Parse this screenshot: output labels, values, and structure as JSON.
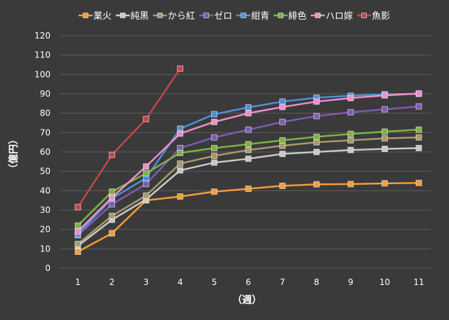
{
  "chart_data": {
    "type": "line",
    "xlabel": "（週）",
    "ylabel": "（億円）",
    "categories": [
      "1",
      "2",
      "3",
      "4",
      "5",
      "6",
      "7",
      "8",
      "9",
      "10",
      "11"
    ],
    "ylim": [
      0,
      120
    ],
    "yticks": [
      "0",
      "10",
      "20",
      "30",
      "40",
      "50",
      "60",
      "70",
      "80",
      "90",
      "100",
      "110",
      "120"
    ],
    "grid": true,
    "legend_position": "top",
    "series": [
      {
        "name": "業火",
        "color": "#f39c3d",
        "values": [
          8.5,
          18,
          35,
          37,
          39.5,
          41,
          42.5,
          43.3,
          43.4,
          43.8,
          44
        ]
      },
      {
        "name": "純黒",
        "color": "#c8c8c8",
        "values": [
          11.5,
          25,
          35.5,
          50.5,
          54.5,
          56.5,
          59,
          60,
          61,
          61.6,
          62
        ]
      },
      {
        "name": "から紅",
        "color": "#a89a6a",
        "values": [
          12.5,
          27,
          37.5,
          54,
          58,
          61,
          63.2,
          65,
          66,
          67,
          67.5
        ]
      },
      {
        "name": "ゼロ",
        "color": "#7d5bb0",
        "values": [
          17,
          33,
          43.5,
          62,
          67.5,
          71.5,
          75.5,
          78.5,
          80.5,
          82,
          83.5
        ]
      },
      {
        "name": "紺青",
        "color": "#4f8fd8",
        "values": [
          17.5,
          36,
          46.5,
          72,
          79.5,
          83,
          86,
          88,
          89,
          89.8,
          90
        ]
      },
      {
        "name": "緋色",
        "color": "#7cb244",
        "values": [
          22,
          39.5,
          49,
          59.5,
          62,
          64,
          66,
          67.8,
          69.3,
          70.5,
          71.5
        ]
      },
      {
        "name": "ハロ嫁",
        "color": "#ee8ec8",
        "values": [
          19,
          36.5,
          52.5,
          69.5,
          75.5,
          80,
          83.2,
          86,
          87.8,
          89.2,
          90.2
        ]
      },
      {
        "name": "魚影",
        "color": "#c0474a",
        "values": [
          31.5,
          58.5,
          77,
          103,
          null,
          null,
          null,
          null,
          null,
          null,
          null
        ]
      }
    ]
  }
}
